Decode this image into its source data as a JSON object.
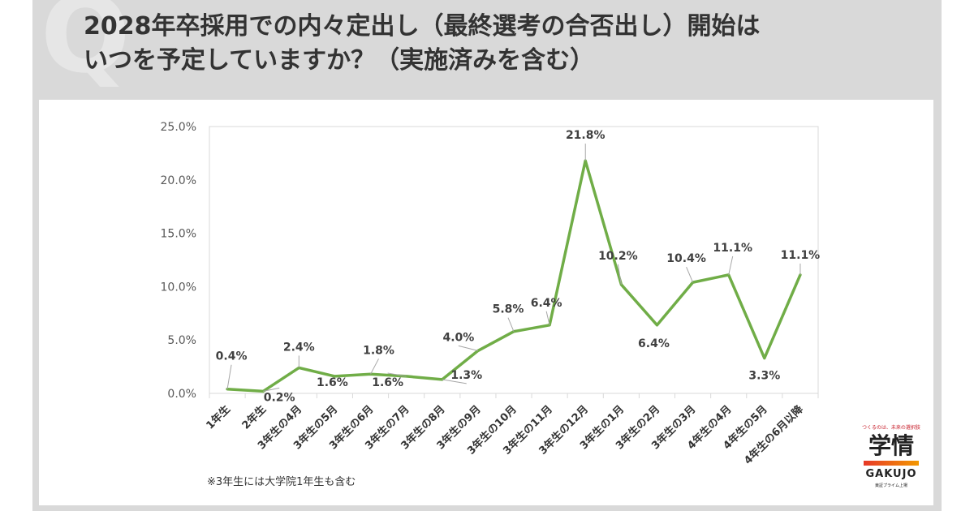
{
  "header": {
    "q_mark": "Q",
    "title_line1": "2028年卒採用での内々定出し（最終選考の合否出し）開始は",
    "title_line2": "いつを予定していますか？（実施済みを含む）"
  },
  "chart_data": {
    "type": "line",
    "categories": [
      "1年生",
      "2年生",
      "3年生の4月",
      "3年生の5月",
      "3年生の6月",
      "3年生の7月",
      "3年生の8月",
      "3年生の9月",
      "3年生の10月",
      "3年生の11月",
      "3年生の12月",
      "3年生の1月",
      "3年生の2月",
      "3年生の3月",
      "4年生の4月",
      "4年生の5月",
      "4年生の6月以降"
    ],
    "series": [
      {
        "values": [
          0.4,
          0.2,
          2.4,
          1.6,
          1.8,
          1.6,
          1.3,
          4.0,
          5.8,
          6.4,
          21.8,
          10.2,
          6.4,
          10.4,
          11.1,
          3.3,
          11.1
        ]
      }
    ],
    "data_labels": [
      "0.4%",
      "0.2%",
      "2.4%",
      "1.6%",
      "1.8%",
      "1.6%",
      "1.3%",
      "4.0%",
      "5.8%",
      "6.4%",
      "21.8%",
      "10.2%",
      "6.4%",
      "10.4%",
      "11.1%",
      "3.3%",
      "11.1%"
    ],
    "y_ticks": [
      0,
      5,
      10,
      15,
      20,
      25
    ],
    "y_tick_labels": [
      "0.0%",
      "5.0%",
      "10.0%",
      "15.0%",
      "20.0%",
      "25.0%"
    ],
    "ylim": [
      0,
      25
    ],
    "grid": false,
    "line_color": "#70ad47"
  },
  "footnote": "※3年生には大学院1年生も含む",
  "logo": {
    "tagline": "つくるのは、未来の選択肢",
    "main": "学情",
    "english": "GAKUJO",
    "sub": "東証プライム上場"
  }
}
